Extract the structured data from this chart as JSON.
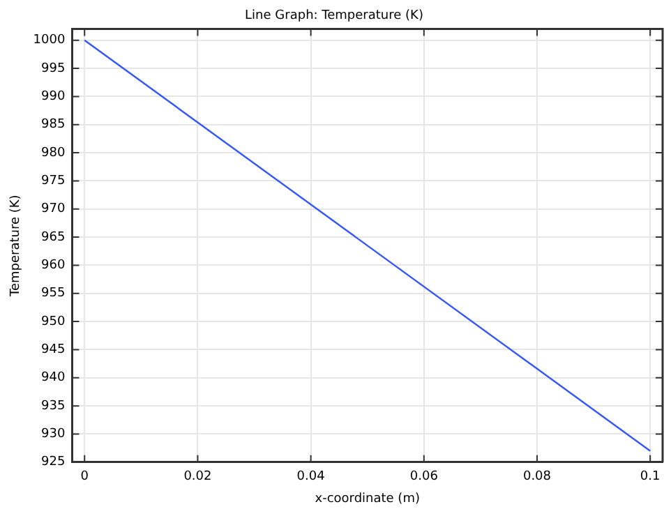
{
  "chart_data": {
    "type": "line",
    "title": "Line Graph: Temperature (K)",
    "xlabel": "x-coordinate (m)",
    "ylabel": "Temperature (K)",
    "x": [
      0,
      0.1
    ],
    "series": [
      {
        "color": "#3355ff",
        "values": [
          1000,
          927
        ]
      }
    ],
    "xlim": [
      -0.0022,
      0.1022
    ],
    "xticks": [
      0,
      0.02,
      0.04,
      0.06,
      0.08,
      0.1
    ],
    "ylim": [
      925,
      1002
    ],
    "yticks": [
      925,
      930,
      935,
      940,
      945,
      950,
      955,
      960,
      965,
      970,
      975,
      980,
      985,
      990,
      995,
      1000
    ],
    "grid": true,
    "legend": false,
    "marker": "none",
    "line_style": "solid"
  }
}
